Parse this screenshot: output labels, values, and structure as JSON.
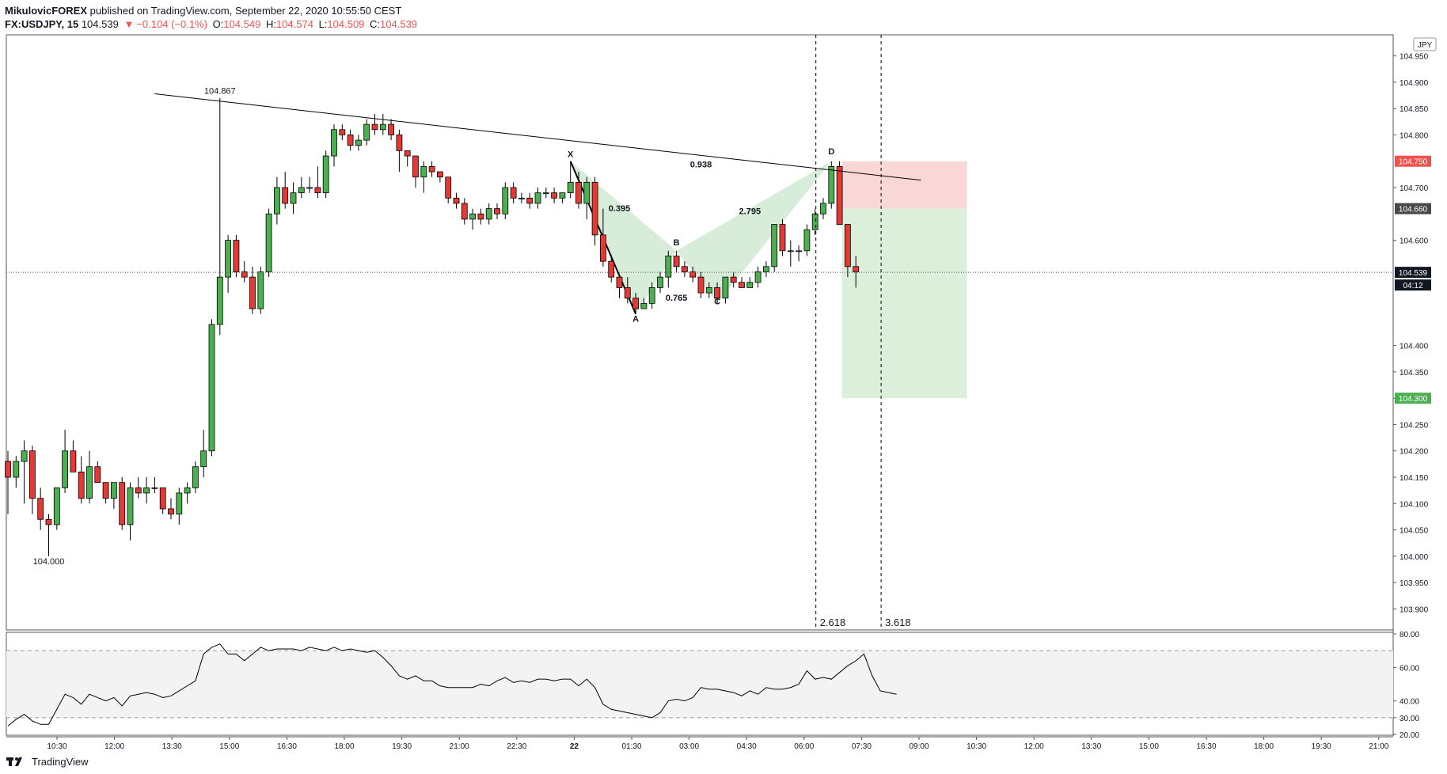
{
  "header": {
    "publisher": "MikulovicFOREX",
    "published_text": "published on TradingView.com, September 22, 2020 10:55:50 CEST",
    "symbol": "FX:USDJPY, 15",
    "last": "104.539",
    "change": "−0.104 (−0.1%)",
    "o_label": "O:",
    "o": "104.549",
    "h_label": "H:",
    "h": "104.574",
    "l_label": "L:",
    "l": "104.509",
    "c_label": "C:",
    "c": "104.539"
  },
  "footer": {
    "brand": "TradingView"
  },
  "colors": {
    "up": "#4caf50",
    "down": "#e53935",
    "accent_red": "#ef5350",
    "accent_green": "#4caf50"
  },
  "chart_data": {
    "type": "candlestick",
    "currency": "JPY",
    "ylim": [
      103.86,
      104.99
    ],
    "yticks": [
      "104.950",
      "104.900",
      "104.850",
      "104.800",
      "104.700",
      "104.600",
      "104.400",
      "104.350",
      "104.300",
      "104.250",
      "104.200",
      "104.150",
      "104.100",
      "104.050",
      "104.000",
      "103.950",
      "103.900"
    ],
    "xticks": [
      "10:30",
      "12:00",
      "13:30",
      "15:00",
      "16:30",
      "18:00",
      "19:30",
      "21:00",
      "22:30",
      "22",
      "01:30",
      "03:00",
      "04:30",
      "06:00",
      "07:30",
      "09:00",
      "10:30",
      "12:00",
      "13:30",
      "15:00",
      "16:30",
      "18:00",
      "19:30",
      "21:00"
    ],
    "price_badges": [
      {
        "text": "104.750",
        "color": "#ef5350"
      },
      {
        "text": "104.660",
        "color": "#4a4a4a"
      },
      {
        "text": "104.539",
        "color": "#131722"
      },
      {
        "text": "04:12",
        "color": "#131722"
      },
      {
        "text": "104.300",
        "color": "#4caf50"
      }
    ],
    "candles": [
      [
        104.18,
        104.2,
        104.08,
        104.15
      ],
      [
        104.15,
        104.19,
        104.13,
        104.18
      ],
      [
        104.18,
        104.22,
        104.1,
        104.2
      ],
      [
        104.2,
        104.21,
        104.08,
        104.11
      ],
      [
        104.11,
        104.13,
        104.05,
        104.07
      ],
      [
        104.07,
        104.08,
        104.0,
        104.06
      ],
      [
        104.06,
        104.13,
        104.05,
        104.13
      ],
      [
        104.13,
        104.24,
        104.12,
        104.2
      ],
      [
        104.2,
        104.22,
        104.16,
        104.16
      ],
      [
        104.16,
        104.19,
        104.1,
        104.11
      ],
      [
        104.11,
        104.2,
        104.1,
        104.17
      ],
      [
        104.17,
        104.18,
        104.14,
        104.14
      ],
      [
        104.14,
        104.14,
        104.1,
        104.11
      ],
      [
        104.11,
        104.14,
        104.09,
        104.14
      ],
      [
        104.14,
        104.15,
        104.05,
        104.06
      ],
      [
        104.06,
        104.14,
        104.03,
        104.13
      ],
      [
        104.13,
        104.15,
        104.11,
        104.12
      ],
      [
        104.12,
        104.15,
        104.1,
        104.13
      ],
      [
        104.13,
        104.15,
        104.12,
        104.13
      ],
      [
        104.13,
        104.13,
        104.08,
        104.09
      ],
      [
        104.09,
        104.11,
        104.07,
        104.08
      ],
      [
        104.08,
        104.13,
        104.06,
        104.12
      ],
      [
        104.12,
        104.14,
        104.1,
        104.13
      ],
      [
        104.13,
        104.18,
        104.12,
        104.17
      ],
      [
        104.17,
        104.24,
        104.15,
        104.2
      ],
      [
        104.2,
        104.45,
        104.19,
        104.44
      ],
      [
        104.44,
        104.87,
        104.42,
        104.53
      ],
      [
        104.53,
        104.61,
        104.5,
        104.6
      ],
      [
        104.6,
        104.61,
        104.53,
        104.54
      ],
      [
        104.54,
        104.56,
        104.52,
        104.53
      ],
      [
        104.53,
        104.55,
        104.46,
        104.47
      ],
      [
        104.47,
        104.55,
        104.46,
        104.54
      ],
      [
        104.54,
        104.66,
        104.53,
        104.65
      ],
      [
        104.65,
        104.72,
        104.63,
        104.7
      ],
      [
        104.7,
        104.73,
        104.66,
        104.67
      ],
      [
        104.67,
        104.71,
        104.65,
        104.69
      ],
      [
        104.69,
        104.72,
        104.68,
        104.7
      ],
      [
        104.7,
        104.72,
        104.69,
        104.7
      ],
      [
        104.7,
        104.74,
        104.68,
        104.69
      ],
      [
        104.69,
        104.77,
        104.68,
        104.76
      ],
      [
        104.76,
        104.82,
        104.74,
        104.81
      ],
      [
        104.81,
        104.82,
        104.79,
        104.8
      ],
      [
        104.8,
        104.81,
        104.77,
        104.78
      ],
      [
        104.78,
        104.8,
        104.77,
        104.79
      ],
      [
        104.79,
        104.83,
        104.78,
        104.82
      ],
      [
        104.82,
        104.84,
        104.8,
        104.81
      ],
      [
        104.81,
        104.84,
        104.8,
        104.82
      ],
      [
        104.82,
        104.83,
        104.79,
        104.8
      ],
      [
        104.8,
        104.81,
        104.73,
        104.77
      ],
      [
        104.77,
        104.77,
        104.74,
        104.76
      ],
      [
        104.76,
        104.76,
        104.7,
        104.72
      ],
      [
        104.72,
        104.75,
        104.69,
        104.74
      ],
      [
        104.74,
        104.75,
        104.72,
        104.73
      ],
      [
        104.73,
        104.73,
        104.71,
        104.72
      ],
      [
        104.72,
        104.72,
        104.67,
        104.68
      ],
      [
        104.68,
        104.69,
        104.66,
        104.67
      ],
      [
        104.67,
        104.68,
        104.63,
        104.64
      ],
      [
        104.64,
        104.66,
        104.62,
        104.65
      ],
      [
        104.65,
        104.66,
        104.63,
        104.64
      ],
      [
        104.64,
        104.67,
        104.63,
        104.66
      ],
      [
        104.66,
        104.67,
        104.64,
        104.65
      ],
      [
        104.65,
        104.71,
        104.64,
        104.7
      ],
      [
        104.7,
        104.71,
        104.67,
        104.68
      ],
      [
        104.68,
        104.69,
        104.67,
        104.68
      ],
      [
        104.68,
        104.69,
        104.66,
        104.67
      ],
      [
        104.67,
        104.7,
        104.66,
        104.69
      ],
      [
        104.69,
        104.7,
        104.68,
        104.69
      ],
      [
        104.69,
        104.7,
        104.67,
        104.68
      ],
      [
        104.68,
        104.69,
        104.67,
        104.69
      ],
      [
        104.69,
        104.75,
        104.68,
        104.71
      ],
      [
        104.71,
        104.73,
        104.66,
        104.67
      ],
      [
        104.67,
        104.72,
        104.64,
        104.71
      ],
      [
        104.71,
        104.72,
        104.59,
        104.61
      ],
      [
        104.61,
        104.66,
        104.55,
        104.56
      ],
      [
        104.56,
        104.57,
        104.52,
        104.53
      ],
      [
        104.53,
        104.53,
        104.49,
        104.51
      ],
      [
        104.51,
        104.53,
        104.48,
        104.49
      ],
      [
        104.49,
        104.5,
        104.46,
        104.47
      ],
      [
        104.47,
        104.49,
        104.47,
        104.48
      ],
      [
        104.48,
        104.52,
        104.47,
        104.51
      ],
      [
        104.51,
        104.54,
        104.5,
        104.53
      ],
      [
        104.53,
        104.58,
        104.51,
        104.57
      ],
      [
        104.57,
        104.58,
        104.54,
        104.55
      ],
      [
        104.55,
        104.56,
        104.53,
        104.54
      ],
      [
        104.54,
        104.55,
        104.52,
        104.53
      ],
      [
        104.53,
        104.54,
        104.49,
        104.5
      ],
      [
        104.5,
        104.52,
        104.49,
        104.51
      ],
      [
        104.51,
        104.52,
        104.48,
        104.49
      ],
      [
        104.49,
        104.53,
        104.48,
        104.53
      ],
      [
        104.53,
        104.54,
        104.51,
        104.52
      ],
      [
        104.52,
        104.53,
        104.51,
        104.51
      ],
      [
        104.51,
        104.53,
        104.51,
        104.52
      ],
      [
        104.52,
        104.55,
        104.51,
        104.54
      ],
      [
        104.54,
        104.56,
        104.53,
        104.55
      ],
      [
        104.55,
        104.63,
        104.54,
        104.63
      ],
      [
        104.63,
        104.64,
        104.57,
        104.58
      ],
      [
        104.58,
        104.6,
        104.55,
        104.58
      ],
      [
        104.58,
        104.59,
        104.56,
        104.58
      ],
      [
        104.58,
        104.63,
        104.57,
        104.62
      ],
      [
        104.62,
        104.66,
        104.61,
        104.65
      ],
      [
        104.65,
        104.68,
        104.64,
        104.67
      ],
      [
        104.67,
        104.75,
        104.66,
        104.74
      ],
      [
        104.74,
        104.75,
        104.63,
        104.63
      ],
      [
        104.63,
        104.63,
        104.53,
        104.55
      ],
      [
        104.55,
        104.57,
        104.51,
        104.54
      ]
    ],
    "annotations": [
      {
        "type": "label",
        "text": "104.867",
        "price": 104.878,
        "i": 26
      },
      {
        "type": "label",
        "text": "104.000",
        "price": 103.985,
        "i": 5
      },
      {
        "type": "label",
        "text": "X",
        "price": 104.758,
        "i": 69
      },
      {
        "type": "label",
        "text": "A",
        "price": 104.445,
        "i": 77
      },
      {
        "type": "label",
        "text": "B",
        "price": 104.59,
        "i": 82
      },
      {
        "type": "label",
        "text": "C",
        "price": 104.478,
        "i": 87
      },
      {
        "type": "label",
        "text": "D",
        "price": 104.763,
        "i": 101
      },
      {
        "type": "label",
        "text": "0.395",
        "price": 104.655,
        "i": 75
      },
      {
        "type": "label",
        "text": "0.938",
        "price": 104.738,
        "i": 85
      },
      {
        "type": "label",
        "text": "2.795",
        "price": 104.65,
        "i": 91
      },
      {
        "type": "label",
        "text": "0.765",
        "price": 104.485,
        "i": 82
      },
      {
        "type": "label",
        "text": "2.618",
        "price": null,
        "i": 99
      },
      {
        "type": "label",
        "text": "3.618",
        "price": null,
        "i": 107
      }
    ],
    "rsi": {
      "yticks": [
        "80.00",
        "60.00",
        "40.00",
        "30.00",
        "20.00"
      ],
      "ylim": [
        20,
        80
      ],
      "upper": 70,
      "lower": 30,
      "values": [
        25,
        29,
        32,
        28,
        26,
        26,
        35,
        44,
        42,
        38,
        44,
        42,
        40,
        42,
        37,
        43,
        44,
        45,
        44,
        42,
        43,
        46,
        49,
        52,
        68,
        72,
        74,
        68,
        68,
        64,
        68,
        72,
        70,
        71,
        71,
        71,
        70,
        72,
        71,
        70,
        72,
        70,
        71,
        70,
        69,
        70,
        66,
        61,
        55,
        53,
        55,
        52,
        52,
        49,
        48,
        48,
        48,
        48,
        50,
        49,
        52,
        54,
        51,
        52,
        51,
        53,
        53,
        52,
        53,
        53,
        49,
        53,
        48,
        38,
        35,
        34,
        33,
        32,
        31,
        30,
        33,
        40,
        41,
        40,
        42,
        48,
        47,
        47,
        46,
        45,
        43,
        46,
        44,
        48,
        47,
        47,
        48,
        50,
        58,
        53,
        54,
        53,
        57,
        61,
        64,
        68,
        55,
        46,
        45,
        44
      ]
    }
  }
}
